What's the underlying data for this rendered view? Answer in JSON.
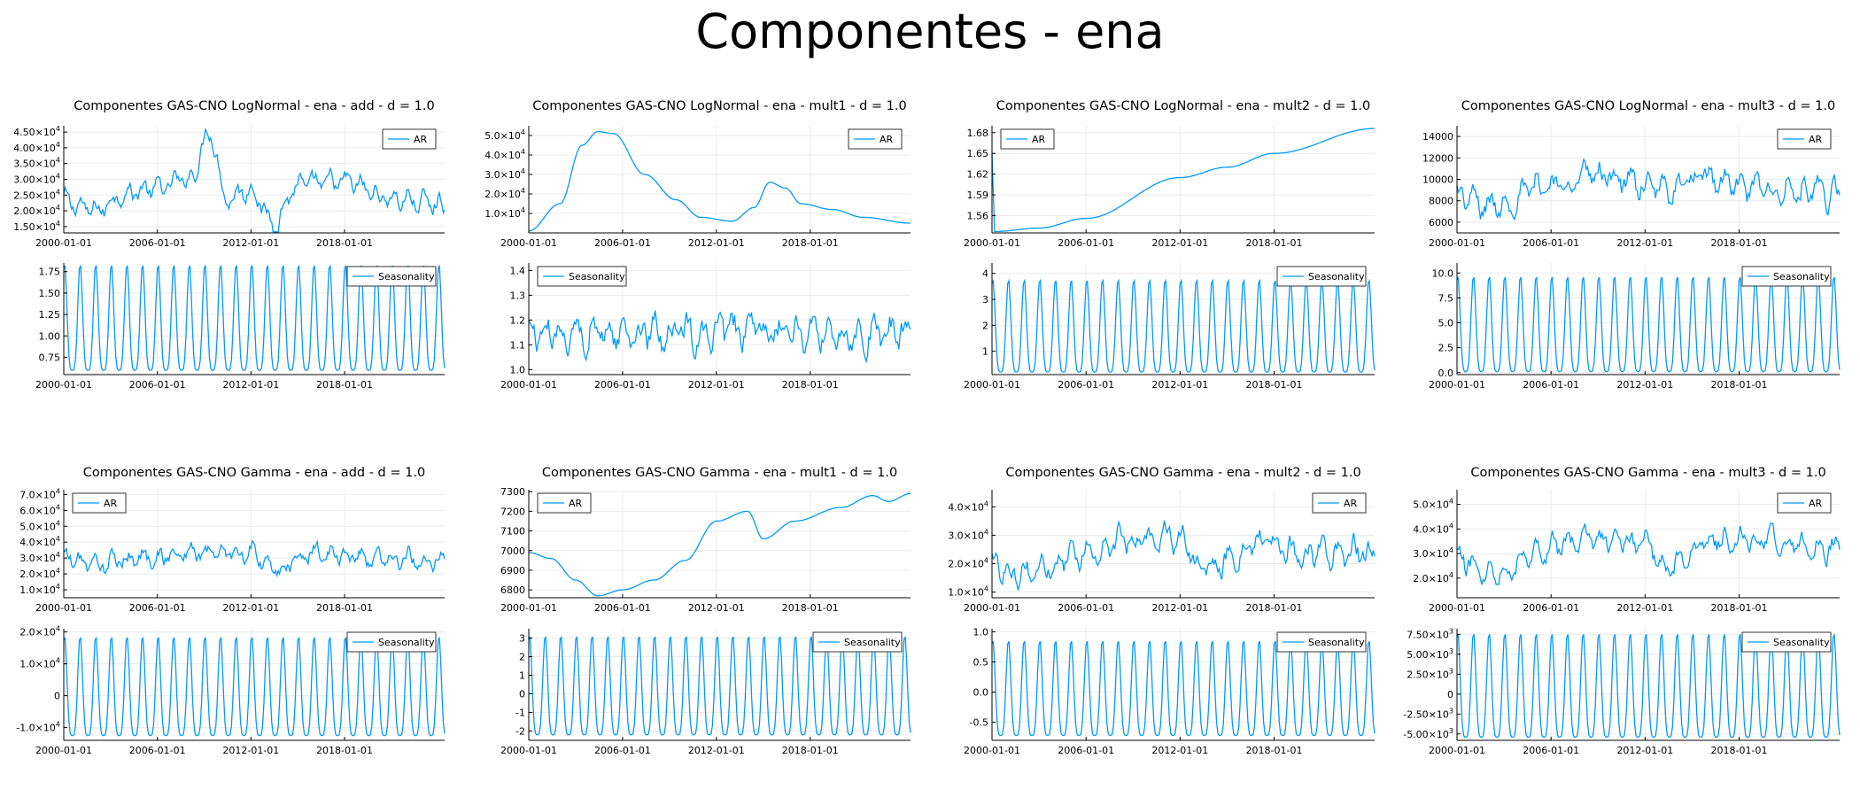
{
  "page_title": "Componentes - ena",
  "colors": {
    "series": "#009AFA",
    "axis": "#000000",
    "grid": "#ebebeb",
    "text": "#000000"
  },
  "x_tick_labels": [
    "2000-01-01",
    "2006-01-01",
    "2012-01-01",
    "2018-01-01"
  ],
  "chart_data": [
    {
      "type": "line",
      "title": "Componentes GAS-CNO LogNormal - ena - add - d = 1.0",
      "x_range": [
        "2000-01-01",
        "2024-06-01"
      ],
      "panels": [
        {
          "legend": "AR",
          "legend_position": "top-right",
          "ylim": [
            13000,
            47000
          ],
          "yticks": [
            15000,
            20000,
            25000,
            30000,
            35000,
            40000,
            45000
          ],
          "ytick_labels": [
            [
              "1.50",
              "4"
            ],
            [
              "2.00",
              "4"
            ],
            [
              "2.50",
              "4"
            ],
            [
              "3.00",
              "4"
            ],
            [
              "3.50",
              "4"
            ],
            [
              "4.00",
              "4"
            ],
            [
              "4.50",
              "4"
            ]
          ],
          "pattern": "noisy",
          "level": 25000,
          "amplitude": 5000,
          "anchors": [
            [
              "2000-01-01",
              23000
            ],
            [
              "2002-01-01",
              20000
            ],
            [
              "2004-01-01",
              26000
            ],
            [
              "2006-01-01",
              27000
            ],
            [
              "2008-01-01",
              30000
            ],
            [
              "2009-06-01",
              45000
            ],
            [
              "2010-06-01",
              24000
            ],
            [
              "2012-01-01",
              27000
            ],
            [
              "2013-06-01",
              16000
            ],
            [
              "2015-01-01",
              28000
            ],
            [
              "2018-01-01",
              29000
            ],
            [
              "2021-01-01",
              24000
            ],
            [
              "2024-06-01",
              22000
            ]
          ]
        },
        {
          "legend": "Seasonality",
          "legend_position": "top-right",
          "ylim": [
            0.55,
            1.85
          ],
          "yticks": [
            0.75,
            1.0,
            1.25,
            1.5,
            1.75
          ],
          "ytick_labels": [
            "0.75",
            "1.00",
            "1.25",
            "1.50",
            "1.75"
          ],
          "pattern": "seasonal",
          "low": 0.6,
          "high": 1.85
        }
      ]
    },
    {
      "type": "line",
      "title": "Componentes GAS-CNO LogNormal - ena - mult1 - d = 1.0",
      "x_range": [
        "2000-01-01",
        "2024-06-01"
      ],
      "panels": [
        {
          "legend": "AR",
          "legend_position": "top-right",
          "ylim": [
            0,
            55000
          ],
          "yticks": [
            10000,
            20000,
            30000,
            40000,
            50000
          ],
          "ytick_labels": [
            [
              "1.0",
              "4"
            ],
            [
              "2.0",
              "4"
            ],
            [
              "3.0",
              "4"
            ],
            [
              "4.0",
              "4"
            ],
            [
              "5.0",
              "4"
            ]
          ],
          "pattern": "smooth",
          "anchors": [
            [
              "2000-01-01",
              1000
            ],
            [
              "2002-01-01",
              15000
            ],
            [
              "2003-06-01",
              45000
            ],
            [
              "2004-06-01",
              52000
            ],
            [
              "2005-06-01",
              51000
            ],
            [
              "2007-06-01",
              30000
            ],
            [
              "2009-06-01",
              17000
            ],
            [
              "2011-01-01",
              8000
            ],
            [
              "2013-01-01",
              6000
            ],
            [
              "2014-06-01",
              13000
            ],
            [
              "2015-06-01",
              26000
            ],
            [
              "2016-06-01",
              23000
            ],
            [
              "2017-06-01",
              15000
            ],
            [
              "2019-06-01",
              12000
            ],
            [
              "2021-06-01",
              8000
            ],
            [
              "2024-06-01",
              5000
            ]
          ]
        },
        {
          "legend": "Seasonality",
          "legend_position": "top-left",
          "ylim": [
            0.98,
            1.43
          ],
          "yticks": [
            1.0,
            1.1,
            1.2,
            1.3,
            1.4
          ],
          "ytick_labels": [
            "1.0",
            "1.1",
            "1.2",
            "1.3",
            "1.4"
          ],
          "pattern": "noisy",
          "level": 1.15,
          "amplitude": 0.1,
          "anchors": [
            [
              "2000-01-01",
              1.15
            ],
            [
              "2024-06-01",
              1.15
            ]
          ]
        }
      ]
    },
    {
      "type": "line",
      "title": "Componentes GAS-CNO LogNormal - ena - mult2 - d = 1.0",
      "x_range": [
        "2000-01-01",
        "2024-06-01"
      ],
      "panels": [
        {
          "legend": "AR",
          "legend_position": "top-left",
          "ylim": [
            1.535,
            1.69
          ],
          "yticks": [
            1.56,
            1.59,
            1.62,
            1.65,
            1.68
          ],
          "ytick_labels": [
            "1.56",
            "1.59",
            "1.62",
            "1.65",
            "1.68"
          ],
          "pattern": "smooth",
          "anchors": [
            [
              "2000-01-01",
              1.65
            ],
            [
              "2000-03-01",
              1.537
            ],
            [
              "2003-01-01",
              1.542
            ],
            [
              "2006-01-01",
              1.556
            ],
            [
              "2012-01-01",
              1.615
            ],
            [
              "2015-01-01",
              1.63
            ],
            [
              "2018-01-01",
              1.65
            ],
            [
              "2024-06-01",
              1.686
            ]
          ]
        },
        {
          "legend": "Seasonality",
          "legend_position": "top-right",
          "ylim": [
            0.1,
            4.4
          ],
          "yticks": [
            1,
            2,
            3,
            4
          ],
          "ytick_labels": [
            "1",
            "2",
            "3",
            "4"
          ],
          "pattern": "seasonal",
          "low": 0.2,
          "high": 3.8
        }
      ]
    },
    {
      "type": "line",
      "title": "Componentes GAS-CNO LogNormal - ena - mult3 - d = 1.0",
      "x_range": [
        "2000-01-01",
        "2024-06-01"
      ],
      "panels": [
        {
          "legend": "AR",
          "legend_position": "top-right",
          "ylim": [
            5000,
            15000
          ],
          "yticks": [
            6000,
            8000,
            10000,
            12000,
            14000
          ],
          "ytick_labels": [
            "6000",
            "8000",
            "10000",
            "12000",
            "14000"
          ],
          "pattern": "noisy",
          "level": 9000,
          "amplitude": 1900,
          "anchors": [
            [
              "2000-01-01",
              8500
            ],
            [
              "2002-01-01",
              7500
            ],
            [
              "2006-01-01",
              9500
            ],
            [
              "2009-01-01",
              10500
            ],
            [
              "2013-01-01",
              9000
            ],
            [
              "2016-01-01",
              10000
            ],
            [
              "2019-01-01",
              9000
            ],
            [
              "2024-06-01",
              8500
            ]
          ]
        },
        {
          "legend": "Seasonality",
          "legend_position": "top-right",
          "ylim": [
            -0.2,
            11
          ],
          "yticks": [
            0,
            2.5,
            5,
            7.5,
            10
          ],
          "ytick_labels": [
            "0.0",
            "2.5",
            "5.0",
            "7.5",
            "10.0"
          ],
          "pattern": "seasonal",
          "low": 0.1,
          "high": 9.8
        }
      ]
    },
    {
      "type": "line",
      "title": "Componentes GAS-CNO Gamma - ena - add - d = 1.0",
      "x_range": [
        "2000-01-01",
        "2024-06-01"
      ],
      "panels": [
        {
          "legend": "AR",
          "legend_position": "top-left",
          "ylim": [
            5000,
            73000
          ],
          "yticks": [
            10000,
            20000,
            30000,
            40000,
            50000,
            60000,
            70000
          ],
          "ytick_labels": [
            [
              "1.0",
              "4"
            ],
            [
              "2.0",
              "4"
            ],
            [
              "3.0",
              "4"
            ],
            [
              "4.0",
              "4"
            ],
            [
              "5.0",
              "4"
            ],
            [
              "6.0",
              "4"
            ],
            [
              "7.0",
              "4"
            ]
          ],
          "pattern": "noisy",
          "level": 32000,
          "amplitude": 9000,
          "anchors": [
            [
              "2000-01-01",
              30000
            ],
            [
              "2002-01-01",
              26000
            ],
            [
              "2005-01-01",
              30000
            ],
            [
              "2008-01-01",
              33000
            ],
            [
              "2012-01-01",
              34000
            ],
            [
              "2013-06-01",
              22000
            ],
            [
              "2016-01-01",
              34000
            ],
            [
              "2020-01-01",
              30000
            ],
            [
              "2024-06-01",
              29000
            ]
          ]
        },
        {
          "legend": "Seasonality",
          "legend_position": "top-right",
          "ylim": [
            -14000,
            21000
          ],
          "yticks": [
            -10000,
            0,
            10000,
            20000
          ],
          "ytick_labels": [
            [
              "-1.0",
              "4"
            ],
            "0",
            [
              "1.0",
              "4"
            ],
            [
              "2.0",
              "4"
            ]
          ],
          "pattern": "seasonal",
          "low": -12500,
          "high": 19000
        }
      ]
    },
    {
      "type": "line",
      "title": "Componentes GAS-CNO Gamma - ena - mult1 - d = 1.0",
      "x_range": [
        "2000-01-01",
        "2024-06-01"
      ],
      "panels": [
        {
          "legend": "AR",
          "legend_position": "top-left",
          "ylim": [
            6760,
            7310
          ],
          "yticks": [
            6800,
            6900,
            7000,
            7100,
            7200,
            7300
          ],
          "ytick_labels": [
            "6800",
            "6900",
            "7000",
            "7100",
            "7200",
            "7300"
          ],
          "pattern": "smooth",
          "anchors": [
            [
              "2000-01-01",
              6990
            ],
            [
              "2001-06-01",
              6960
            ],
            [
              "2003-01-01",
              6850
            ],
            [
              "2004-06-01",
              6770
            ],
            [
              "2006-01-01",
              6800
            ],
            [
              "2008-01-01",
              6850
            ],
            [
              "2010-01-01",
              6950
            ],
            [
              "2012-01-01",
              7150
            ],
            [
              "2014-01-01",
              7200
            ],
            [
              "2015-01-01",
              7060
            ],
            [
              "2017-01-01",
              7150
            ],
            [
              "2020-01-01",
              7220
            ],
            [
              "2022-01-01",
              7280
            ],
            [
              "2023-01-01",
              7250
            ],
            [
              "2024-06-01",
              7290
            ]
          ]
        },
        {
          "legend": "Seasonality",
          "legend_position": "top-right",
          "ylim": [
            -2.5,
            3.5
          ],
          "yticks": [
            -2,
            -1,
            0,
            1,
            2,
            3
          ],
          "ytick_labels": [
            "-2",
            "-1",
            "0",
            "1",
            "2",
            "3"
          ],
          "pattern": "seasonal",
          "low": -2.2,
          "high": 3.2
        }
      ]
    },
    {
      "type": "line",
      "title": "Componentes GAS-CNO Gamma - ena - mult2 - d = 1.0",
      "x_range": [
        "2000-01-01",
        "2024-06-01"
      ],
      "panels": [
        {
          "legend": "AR",
          "legend_position": "top-right",
          "ylim": [
            8000,
            46000
          ],
          "yticks": [
            10000,
            20000,
            30000,
            40000
          ],
          "ytick_labels": [
            [
              "1.0",
              "4"
            ],
            [
              "2.0",
              "4"
            ],
            [
              "3.0",
              "4"
            ],
            [
              "4.0",
              "4"
            ]
          ],
          "pattern": "noisy",
          "level": 24000,
          "amplitude": 7000,
          "anchors": [
            [
              "2000-01-01",
              20000
            ],
            [
              "2002-01-01",
              17000
            ],
            [
              "2006-01-01",
              24000
            ],
            [
              "2009-01-01",
              28000
            ],
            [
              "2012-01-01",
              30000
            ],
            [
              "2013-06-01",
              17000
            ],
            [
              "2017-01-01",
              27000
            ],
            [
              "2020-01-01",
              24000
            ],
            [
              "2024-06-01",
              24000
            ]
          ]
        },
        {
          "legend": "Seasonality",
          "legend_position": "top-right",
          "ylim": [
            -0.8,
            1.05
          ],
          "yticks": [
            -0.5,
            0,
            0.5,
            1.0
          ],
          "ytick_labels": [
            "-0.5",
            "0.0",
            "0.5",
            "1.0"
          ],
          "pattern": "seasonal",
          "low": -0.72,
          "high": 0.88
        }
      ]
    },
    {
      "type": "line",
      "title": "Componentes GAS-CNO Gamma - ena - mult3 - d = 1.0",
      "x_range": [
        "2000-01-01",
        "2024-06-01"
      ],
      "panels": [
        {
          "legend": "AR",
          "legend_position": "top-right",
          "ylim": [
            12000,
            56000
          ],
          "yticks": [
            20000,
            30000,
            40000,
            50000
          ],
          "ytick_labels": [
            [
              "2.0",
              "4"
            ],
            [
              "3.0",
              "4"
            ],
            [
              "4.0",
              "4"
            ],
            [
              "5.0",
              "4"
            ]
          ],
          "pattern": "noisy",
          "level": 33000,
          "amplitude": 7000,
          "anchors": [
            [
              "2000-01-01",
              28000
            ],
            [
              "2002-01-01",
              23000
            ],
            [
              "2006-01-01",
              33000
            ],
            [
              "2009-01-01",
              36000
            ],
            [
              "2012-01-01",
              34000
            ],
            [
              "2013-06-01",
              24000
            ],
            [
              "2016-01-01",
              36000
            ],
            [
              "2020-01-01",
              35000
            ],
            [
              "2024-06-01",
              32000
            ]
          ]
        },
        {
          "legend": "Seasonality",
          "legend_position": "top-right",
          "ylim": [
            -5800,
            8200
          ],
          "yticks": [
            -5000,
            -2500,
            0,
            2500,
            5000,
            7500
          ],
          "ytick_labels": [
            [
              "-5.00",
              "3"
            ],
            [
              "-2.50",
              "3"
            ],
            "0",
            [
              "2.50",
              "3"
            ],
            [
              "5.00",
              "3"
            ],
            [
              "7.50",
              "3"
            ]
          ],
          "pattern": "seasonal",
          "low": -5400,
          "high": 7800
        }
      ]
    }
  ]
}
